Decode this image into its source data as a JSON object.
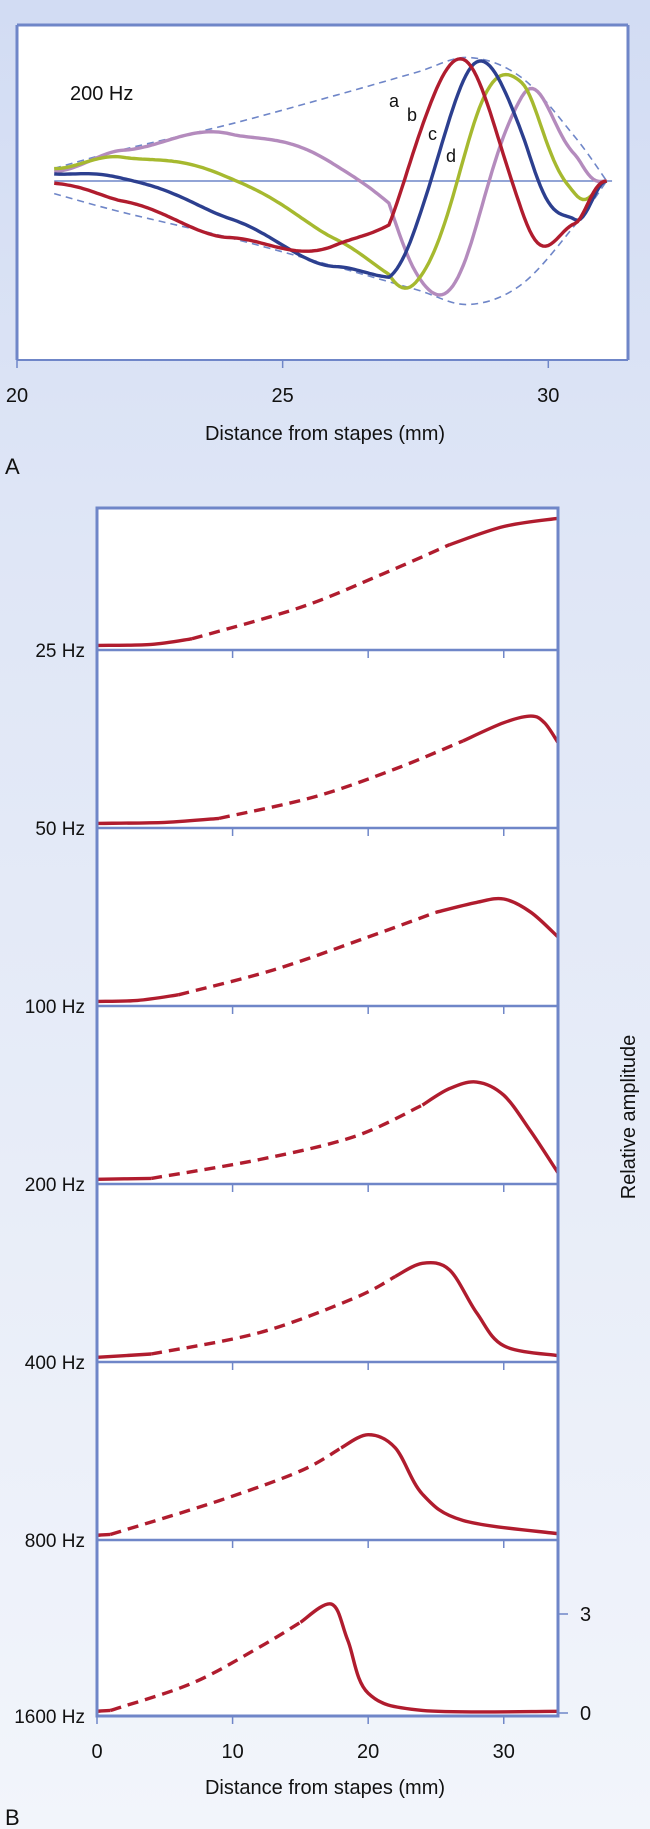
{
  "chart_data": [
    {
      "panel_letter": "A",
      "type": "line",
      "annotation": "200 Hz",
      "xlabel": "Distance from stapes (mm)",
      "ylabel": "",
      "xlim": [
        20,
        31.5
      ],
      "x_ticks": [
        "20",
        "25",
        "30"
      ],
      "x_tick_values": [
        20,
        25,
        30
      ],
      "series_labels": [
        "a",
        "b",
        "c",
        "d"
      ],
      "colors": {
        "a": "#b01c2e",
        "b": "#2c3f8f",
        "c": "#a6b92f",
        "d": "#b48bbd",
        "envelope": "#6f86c8",
        "baseline": "#6f86c8"
      },
      "envelope_points": [
        [
          20.7,
          0.1
        ],
        [
          22.0,
          0.25
        ],
        [
          24.0,
          0.45
        ],
        [
          26.0,
          0.68
        ],
        [
          27.5,
          0.86
        ],
        [
          28.5,
          0.98
        ],
        [
          29.5,
          0.82
        ],
        [
          30.5,
          0.35
        ],
        [
          31.1,
          0.0
        ]
      ],
      "wave_phases_peak_x": [
        28.3,
        28.8,
        29.3,
        29.9
      ]
    },
    {
      "panel_letter": "B",
      "type": "line",
      "xlabel": "Distance from stapes (mm)",
      "ylabel": "Relative amplitude",
      "xlim": [
        0,
        34
      ],
      "x_ticks": [
        "0",
        "10",
        "20",
        "30"
      ],
      "x_tick_values": [
        0,
        10,
        20,
        30
      ],
      "y_ticks": [
        "0",
        "3"
      ],
      "y_tick_values": [
        0,
        3
      ],
      "line_color": "#b01c2e",
      "series": [
        {
          "name": "25 Hz",
          "solid_start": [
            [
              0,
              0.05
            ],
            [
              4,
              0.08
            ],
            [
              7,
              0.25
            ]
          ],
          "dashed": [
            [
              7,
              0.25
            ],
            [
              15,
              1.2
            ],
            [
              21,
              2.2
            ],
            [
              26,
              3.1
            ]
          ],
          "solid_end": [
            [
              26,
              3.1
            ],
            [
              30,
              3.65
            ],
            [
              34,
              3.9
            ]
          ]
        },
        {
          "name": "50 Hz",
          "solid_start": [
            [
              0,
              0.05
            ],
            [
              5,
              0.08
            ],
            [
              9,
              0.2
            ]
          ],
          "dashed": [
            [
              9,
              0.2
            ],
            [
              16,
              0.85
            ],
            [
              22,
              1.7
            ],
            [
              27,
              2.55
            ]
          ],
          "solid_end": [
            [
              27,
              2.55
            ],
            [
              30,
              3.1
            ],
            [
              32,
              3.3
            ],
            [
              33,
              3.1
            ],
            [
              34,
              2.5
            ]
          ]
        },
        {
          "name": "100 Hz",
          "solid_start": [
            [
              0,
              0.05
            ],
            [
              3,
              0.08
            ],
            [
              6,
              0.25
            ]
          ],
          "dashed": [
            [
              6,
              0.25
            ],
            [
              13,
              1.0
            ],
            [
              20,
              2.0
            ],
            [
              25,
              2.75
            ]
          ],
          "solid_end": [
            [
              25,
              2.75
            ],
            [
              28,
              3.05
            ],
            [
              30,
              3.15
            ],
            [
              32,
              2.75
            ],
            [
              34,
              2.0
            ]
          ]
        },
        {
          "name": "200 Hz",
          "solid_start": [
            [
              0,
              0.05
            ],
            [
              4,
              0.08
            ]
          ],
          "dashed": [
            [
              4,
              0.08
            ],
            [
              12,
              0.65
            ],
            [
              19,
              1.35
            ],
            [
              24,
              2.3
            ]
          ],
          "solid_end": [
            [
              24,
              2.3
            ],
            [
              26,
              2.8
            ],
            [
              28,
              3.0
            ],
            [
              30,
              2.6
            ],
            [
              32,
              1.5
            ],
            [
              34,
              0.25
            ]
          ]
        },
        {
          "name": "400 Hz",
          "solid_start": [
            [
              0,
              0.05
            ],
            [
              4,
              0.15
            ]
          ],
          "dashed": [
            [
              4,
              0.15
            ],
            [
              12,
              0.8
            ],
            [
              19,
              1.85
            ],
            [
              22,
              2.5
            ]
          ],
          "solid_end": [
            [
              22,
              2.5
            ],
            [
              24,
              2.9
            ],
            [
              26,
              2.7
            ],
            [
              28,
              1.4
            ],
            [
              30,
              0.4
            ],
            [
              34,
              0.1
            ]
          ]
        },
        {
          "name": "800 Hz",
          "solid_start": [
            [
              0,
              0.05
            ],
            [
              1,
              0.08
            ]
          ],
          "dashed": [
            [
              1,
              0.08
            ],
            [
              9,
              1.1
            ],
            [
              15,
              2.0
            ],
            [
              18,
              2.7
            ]
          ],
          "solid_end": [
            [
              18,
              2.7
            ],
            [
              20,
              3.1
            ],
            [
              22,
              2.7
            ],
            [
              24,
              1.3
            ],
            [
              27,
              0.5
            ],
            [
              34,
              0.1
            ]
          ]
        },
        {
          "name": "1600 Hz",
          "solid_start": [
            [
              0,
              0.05
            ],
            [
              1,
              0.08
            ]
          ],
          "dashed": [
            [
              1,
              0.08
            ],
            [
              7,
              0.9
            ],
            [
              12,
              2.0
            ],
            [
              15,
              2.75
            ]
          ],
          "solid_end": [
            [
              15,
              2.75
            ],
            [
              17.3,
              3.3
            ],
            [
              18.5,
              2.2
            ],
            [
              20,
              0.6
            ],
            [
              24,
              0.08
            ],
            [
              34,
              0.05
            ]
          ]
        }
      ]
    }
  ]
}
